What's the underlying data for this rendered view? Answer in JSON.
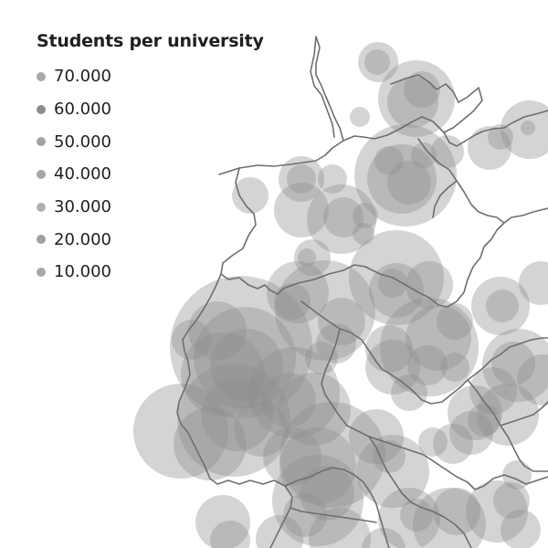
{
  "legend": {
    "title": "Students per university",
    "items": [
      {
        "label": "70.000",
        "color": "#a9a9a9"
      },
      {
        "label": "60.000",
        "color": "#8c8c8c"
      },
      {
        "label": "50.000",
        "color": "#a3a3a3"
      },
      {
        "label": "40.000",
        "color": "#a6a6a6"
      },
      {
        "label": "30.000",
        "color": "#b0b0b0"
      },
      {
        "label": "20.000",
        "color": "#a0a0a0"
      },
      {
        "label": "10.000",
        "color": "#a8a8a8"
      }
    ]
  },
  "style": {
    "bubble_fill": "#8f8f8f",
    "bubble_opacity": 0.38,
    "border_color": "#6e6e6e"
  }
}
